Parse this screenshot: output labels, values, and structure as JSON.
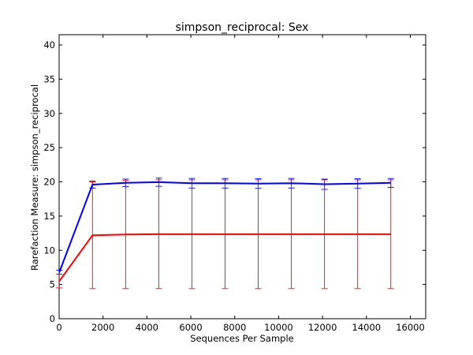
{
  "chart_data": {
    "type": "line",
    "title": "simpson_reciprocal: Sex",
    "xlabel": "Sequences Per Sample",
    "ylabel": "Rarefaction Measure: simpson_reciprocal",
    "xlim": [
      0,
      16700
    ],
    "ylim": [
      0,
      41.5
    ],
    "xticks": [
      0,
      2000,
      4000,
      6000,
      8000,
      10000,
      12000,
      14000,
      16000
    ],
    "yticks": [
      0,
      5,
      10,
      15,
      20,
      25,
      30,
      35,
      40
    ],
    "grid": false,
    "legend": "none",
    "x": [
      10,
      1520,
      3030,
      4540,
      6050,
      7560,
      9070,
      10580,
      12090,
      13600,
      15110
    ],
    "series": [
      {
        "color": "#0000ff",
        "values": [
          6.8,
          19.6,
          19.85,
          19.95,
          19.8,
          19.8,
          19.75,
          19.8,
          19.65,
          19.75,
          19.85
        ],
        "err": [
          0.3,
          0.5,
          0.55,
          0.6,
          0.7,
          0.7,
          0.7,
          0.7,
          0.75,
          0.7,
          0.65
        ]
      },
      {
        "color": "#ff0000",
        "values": [
          5.5,
          12.2,
          12.3,
          12.35,
          12.35,
          12.35,
          12.35,
          12.35,
          12.35,
          12.35,
          12.35
        ],
        "err": [
          1.0,
          7.8,
          7.9,
          7.95,
          7.95,
          7.95,
          7.95,
          7.95,
          7.95,
          7.95,
          7.95
        ]
      }
    ]
  }
}
